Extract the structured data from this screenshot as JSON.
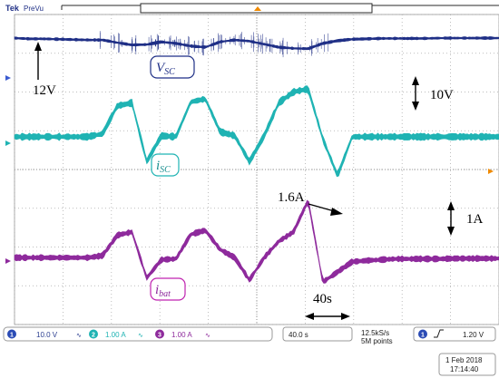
{
  "header": {
    "brand": "Tek",
    "mode": "PreVu"
  },
  "colors": {
    "ch1": "#1f2f86",
    "ch2": "#1fb3b3",
    "ch3": "#8e2a9c",
    "grid": "#9a9a9a",
    "panel_text": "#2a3d8f"
  },
  "chart_data": {
    "type": "line",
    "x": [
      0,
      6.06,
      12.12,
      18.18,
      24.24,
      30.3,
      36.36,
      42.42,
      48.48,
      54.55,
      60.61,
      66.67,
      72.73,
      78.79,
      84.85,
      90.91,
      96.97,
      103.03,
      109.09,
      115.15,
      121.21,
      127.27,
      133.33,
      139.39,
      145.45,
      151.52,
      157.58,
      163.64,
      169.7,
      175.76,
      181.82,
      187.88,
      193.94,
      200
    ],
    "xlim": [
      0,
      200
    ],
    "grid": true,
    "series": [
      {
        "name": "V_SC",
        "channel": 1,
        "values": [
          12.6,
          12.4,
          12.4,
          12.3,
          12.2,
          12.1,
          12.1,
          11.4,
          10.8,
          10.9,
          11.6,
          11.2,
          10.5,
          10.2,
          11.6,
          12.1,
          11.8,
          11.0,
          10.2,
          9.9,
          9.8,
          11.2,
          11.9,
          12.3,
          12.4,
          12.5,
          12.5,
          12.5,
          12.5,
          12.6,
          12.6,
          12.6,
          12.6,
          12.6
        ]
      },
      {
        "name": "i_SC",
        "channel": 2,
        "values": [
          0.05,
          0.05,
          0.05,
          0.05,
          0.05,
          0.05,
          0.2,
          1.6,
          1.75,
          -1.2,
          0.1,
          0.05,
          1.8,
          1.95,
          0.3,
          0.1,
          -1.2,
          0.1,
          1.75,
          2.3,
          2.45,
          -0.05,
          -1.9,
          0.05,
          0.05,
          0.05,
          0.05,
          0.05,
          0.05,
          0.05,
          0.05,
          0.05,
          0.05,
          0.05
        ]
      },
      {
        "name": "i_bat",
        "channel": 3,
        "values": [
          0.15,
          0.15,
          0.15,
          0.15,
          0.15,
          0.15,
          0.2,
          0.7,
          0.78,
          -0.35,
          0.1,
          0.12,
          0.72,
          0.82,
          0.35,
          0.15,
          -0.4,
          0.15,
          0.55,
          0.78,
          1.55,
          -0.45,
          -0.2,
          0.05,
          0.08,
          0.1,
          0.12,
          0.12,
          0.12,
          0.12,
          0.13,
          0.13,
          0.13,
          0.13
        ]
      }
    ],
    "annotations": {
      "v_start": "12V",
      "v_scale": "10V",
      "i_scale": "1A",
      "peak": "1.6A",
      "time_span": "40s",
      "label_vsc": "V",
      "label_vsc_sub": "SC",
      "label_isc": "i",
      "label_isc_sub": "SC",
      "label_ibat": "i",
      "label_ibat_sub": "bat"
    }
  },
  "status": {
    "ch1": {
      "num": "1",
      "value": "10.0 V"
    },
    "ch2": {
      "num": "2",
      "value": "1.00 A"
    },
    "ch3": {
      "num": "3",
      "value": "1.00 A"
    },
    "timebase": "40.0 s",
    "sample_rate": "12.5kS/s",
    "record_length": "5M points",
    "trigger_ch": "1",
    "trigger_level": "1.20 V",
    "date": "1 Feb 2018",
    "time": "17:14:40"
  }
}
